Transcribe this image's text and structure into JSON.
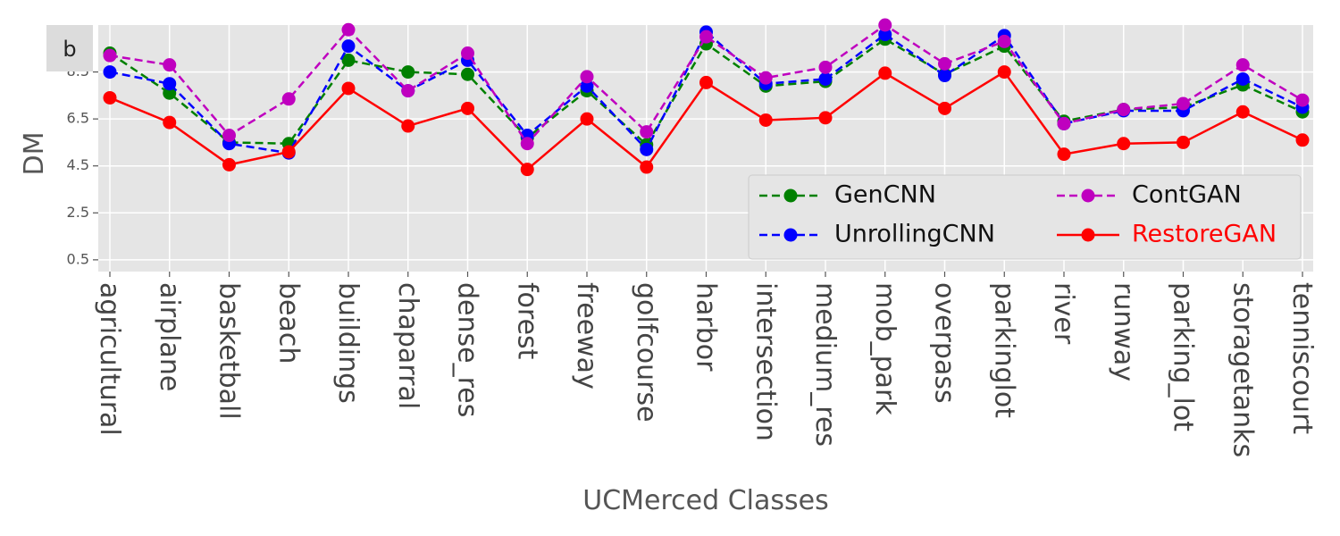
{
  "panel_label": "b",
  "chart_data": {
    "type": "line",
    "xlabel": "UCMerced Classes",
    "ylabel": "DM",
    "yticks": [
      "0.5",
      "2.5",
      "4.5",
      "6.5",
      "8.5"
    ],
    "ylim": [
      0,
      10.5
    ],
    "grid": true,
    "legend_position": "lower-right",
    "categories": [
      "agricultural",
      "airplane",
      "basketball",
      "beach",
      "buildings",
      "chaparral",
      "dense_res",
      "forest",
      "freeway",
      "golfcourse",
      "harbor",
      "intersection",
      "medium_res",
      "mob_park",
      "overpass",
      "parkinglot",
      "river",
      "runway",
      "parking_lot",
      "storagetanks",
      "tenniscourt"
    ],
    "series": [
      {
        "name": "GenCNN",
        "color": "#008000",
        "dashed": true,
        "values": [
          9.3,
          7.6,
          5.5,
          5.45,
          9.0,
          8.5,
          8.4,
          5.7,
          7.7,
          5.4,
          9.7,
          7.9,
          8.1,
          9.9,
          8.4,
          9.6,
          6.4,
          6.9,
          7.0,
          7.95,
          6.8
        ]
      },
      {
        "name": "UnrollingCNN",
        "color": "#0000ff",
        "dashed": true,
        "values": [
          8.5,
          8.0,
          5.45,
          5.05,
          9.6,
          7.7,
          9.0,
          5.8,
          7.9,
          5.2,
          10.2,
          8.0,
          8.2,
          10.1,
          8.35,
          10.05,
          6.3,
          6.85,
          6.85,
          8.2,
          7.0
        ]
      },
      {
        "name": "ContGAN",
        "color": "#bf00bf",
        "dashed": true,
        "values": [
          9.2,
          8.8,
          5.8,
          7.35,
          10.3,
          7.7,
          9.3,
          5.45,
          8.3,
          5.95,
          10.0,
          8.25,
          8.7,
          10.5,
          8.85,
          9.8,
          6.3,
          6.9,
          7.15,
          8.8,
          7.3
        ]
      },
      {
        "name": "RestoreGAN",
        "color": "#ff0000",
        "dashed": false,
        "values": [
          7.4,
          6.35,
          4.55,
          5.1,
          7.8,
          6.2,
          6.95,
          4.35,
          6.5,
          4.45,
          8.05,
          6.45,
          6.55,
          8.45,
          6.95,
          8.5,
          5.0,
          5.45,
          5.5,
          6.8,
          5.6
        ]
      }
    ]
  }
}
